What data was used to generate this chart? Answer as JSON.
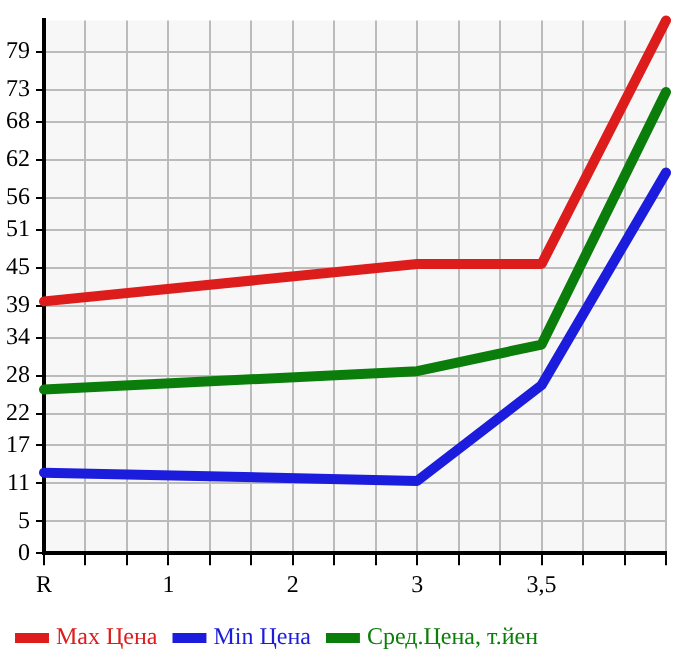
{
  "chart_data": {
    "type": "line",
    "categories": [
      "R",
      "1",
      "2",
      "3",
      "3,5",
      null
    ],
    "series": [
      {
        "name": "Max Цена",
        "color": "#dd1c1c",
        "values": [
          39.7,
          null,
          null,
          45.6,
          45.6,
          84
        ]
      },
      {
        "name": "Min Цена",
        "color": "#1c1cdd",
        "values": [
          12.7,
          null,
          null,
          11.4,
          26.5,
          60
        ]
      },
      {
        "name": "Сред.Цена, т.йен",
        "color": "#0a7d0a",
        "values": [
          25.8,
          null,
          null,
          28.7,
          32.9,
          72.7
        ]
      }
    ],
    "ylim": [
      0,
      84
    ],
    "yticks": [
      0,
      5,
      11,
      17,
      22,
      28,
      34,
      39,
      45,
      51,
      56,
      62,
      68,
      73,
      79
    ],
    "grid": true,
    "legend": "bottom",
    "marker": "none",
    "line_style": "solid"
  }
}
